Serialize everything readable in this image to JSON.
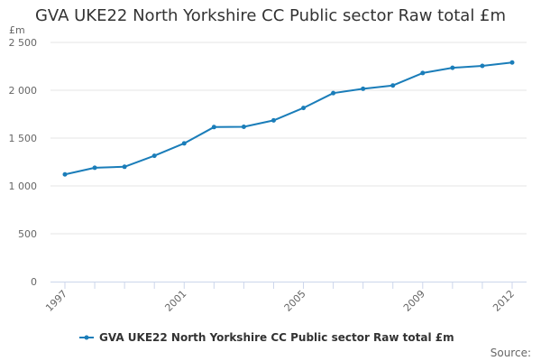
{
  "chart_data": {
    "type": "line",
    "title": "GVA UKE22 North Yorkshire CC Public sector Raw total £m",
    "y_unit": "£m",
    "xlabel": "",
    "ylabel": "",
    "x_tick_labels": [
      "1997",
      "2001",
      "2005",
      "2009",
      "2012"
    ],
    "y_tick_labels": [
      "0",
      "500",
      "1 000",
      "1 500",
      "2 000",
      "2 500"
    ],
    "y_ticks": [
      0,
      500,
      1000,
      1500,
      2000,
      2500
    ],
    "xlim": [
      1997,
      2012
    ],
    "ylim": [
      0,
      2500
    ],
    "grid": "horizontal",
    "legend_position": "bottom-center",
    "color": "#1a7db9",
    "series": [
      {
        "name": "GVA UKE22 North Yorkshire CC Public sector Raw total £m",
        "x": [
          1997,
          1998,
          1999,
          2000,
          2001,
          2002,
          2003,
          2004,
          2005,
          2006,
          2007,
          2008,
          2009,
          2010,
          2011,
          2012
        ],
        "values": [
          1120,
          1190,
          1200,
          1315,
          1445,
          1615,
          1618,
          1685,
          1815,
          1970,
          2015,
          2050,
          2180,
          2235,
          2255,
          2290
        ]
      }
    ]
  },
  "credits": "Source:"
}
